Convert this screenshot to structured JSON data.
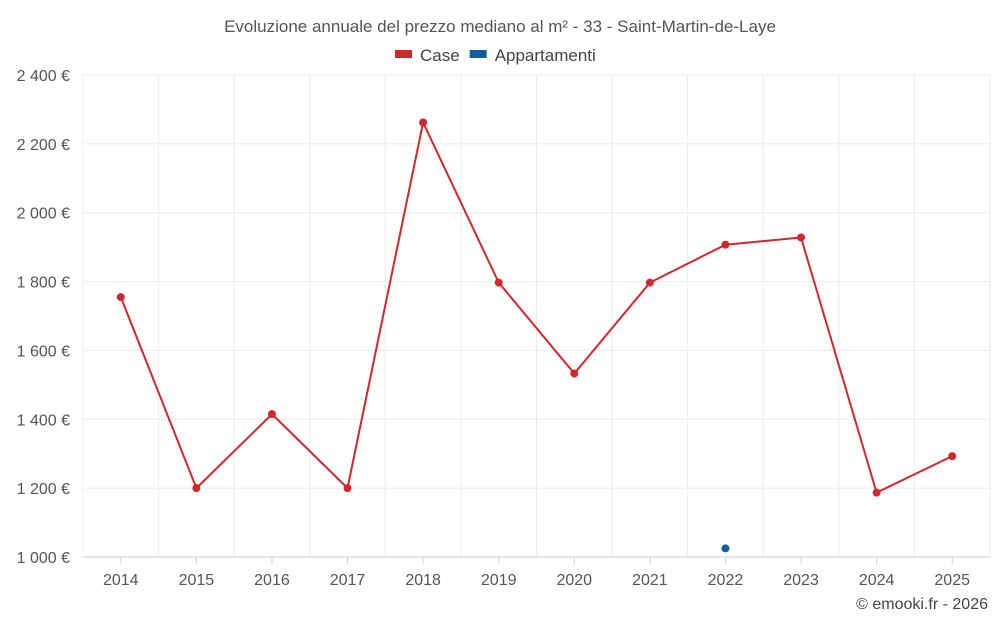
{
  "chart_data": {
    "type": "line",
    "title": "Evoluzione annuale del prezzo mediano al m² - 33 - Saint-Martin-de-Laye",
    "categories": [
      "2014",
      "2015",
      "2016",
      "2017",
      "2018",
      "2019",
      "2020",
      "2021",
      "2022",
      "2023",
      "2024",
      "2025"
    ],
    "series": [
      {
        "name": "Case",
        "color": "#d0282d",
        "values": [
          1755,
          1200,
          1415,
          1200,
          2262,
          1797,
          1533,
          1797,
          1907,
          1928,
          1187,
          1293
        ]
      },
      {
        "name": "Appartamenti",
        "color": "#125f98",
        "values": [
          null,
          null,
          null,
          null,
          null,
          null,
          null,
          null,
          1025,
          null,
          null,
          null
        ]
      }
    ],
    "ylim": [
      1000,
      2400
    ],
    "yticks": [
      1000,
      1200,
      1400,
      1600,
      1800,
      2000,
      2200,
      2400
    ],
    "ytick_labels": [
      "1 000 €",
      "1 200 €",
      "1 400 €",
      "1 600 €",
      "1 800 €",
      "2 000 €",
      "2 200 €",
      "2 400 €"
    ],
    "xlabel": "",
    "ylabel": "",
    "grid": true,
    "legend_position": "top-center"
  },
  "credit": "© emooki.fr - 2026"
}
